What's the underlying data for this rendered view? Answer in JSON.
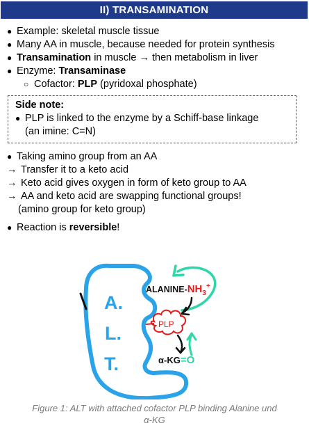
{
  "header": {
    "title": "II)  TRANSAMINATION"
  },
  "bullets1": [
    {
      "text": "Example: skeletal muscle tissue"
    },
    {
      "text": "Many AA in muscle, because needed for protein synthesis"
    },
    {
      "bold": "Transamination",
      "rest": " in muscle → then metabolism in liver"
    },
    {
      "pre": "Enzyme: ",
      "bold": "Transaminase"
    }
  ],
  "sub_bullet": {
    "pre": "Cofactor: ",
    "bold": "PLP",
    "rest": " (pyridoxal phosphate)"
  },
  "side_note": {
    "title": "Side note:",
    "line1": "PLP is linked to the enzyme by a Schiff-base linkage",
    "line2": "(an imine: C=N)"
  },
  "bullets2": {
    "taking": "Taking amino group from an AA",
    "arrow_lines": [
      "Transfer it to a keto acid",
      "Keto acid gives oxygen in form of keto group to AA",
      "AA and keto acid are swapping functional groups!"
    ],
    "paren": "(amino group for keto group)",
    "reaction_pre": "Reaction is ",
    "reaction_bold": "reversible",
    "reaction_post": "!"
  },
  "figure": {
    "letters": [
      "A.",
      "L.",
      "T."
    ],
    "alanine": "ALANINE-",
    "nh3": "NH",
    "nh3_sub": "3",
    "nh3_sup": "+",
    "plp": "PLP",
    "akg": "α-KG",
    "oxo": "=O",
    "colors": {
      "enzyme": "#2aa3e8",
      "plp": "#e01b1b",
      "arrow": "#2fd6a8",
      "text": "#111111"
    }
  },
  "caption": {
    "line1": "Figure 1: ALT with attached cofactor PLP binding Alanine und",
    "line2": "α-KG"
  }
}
